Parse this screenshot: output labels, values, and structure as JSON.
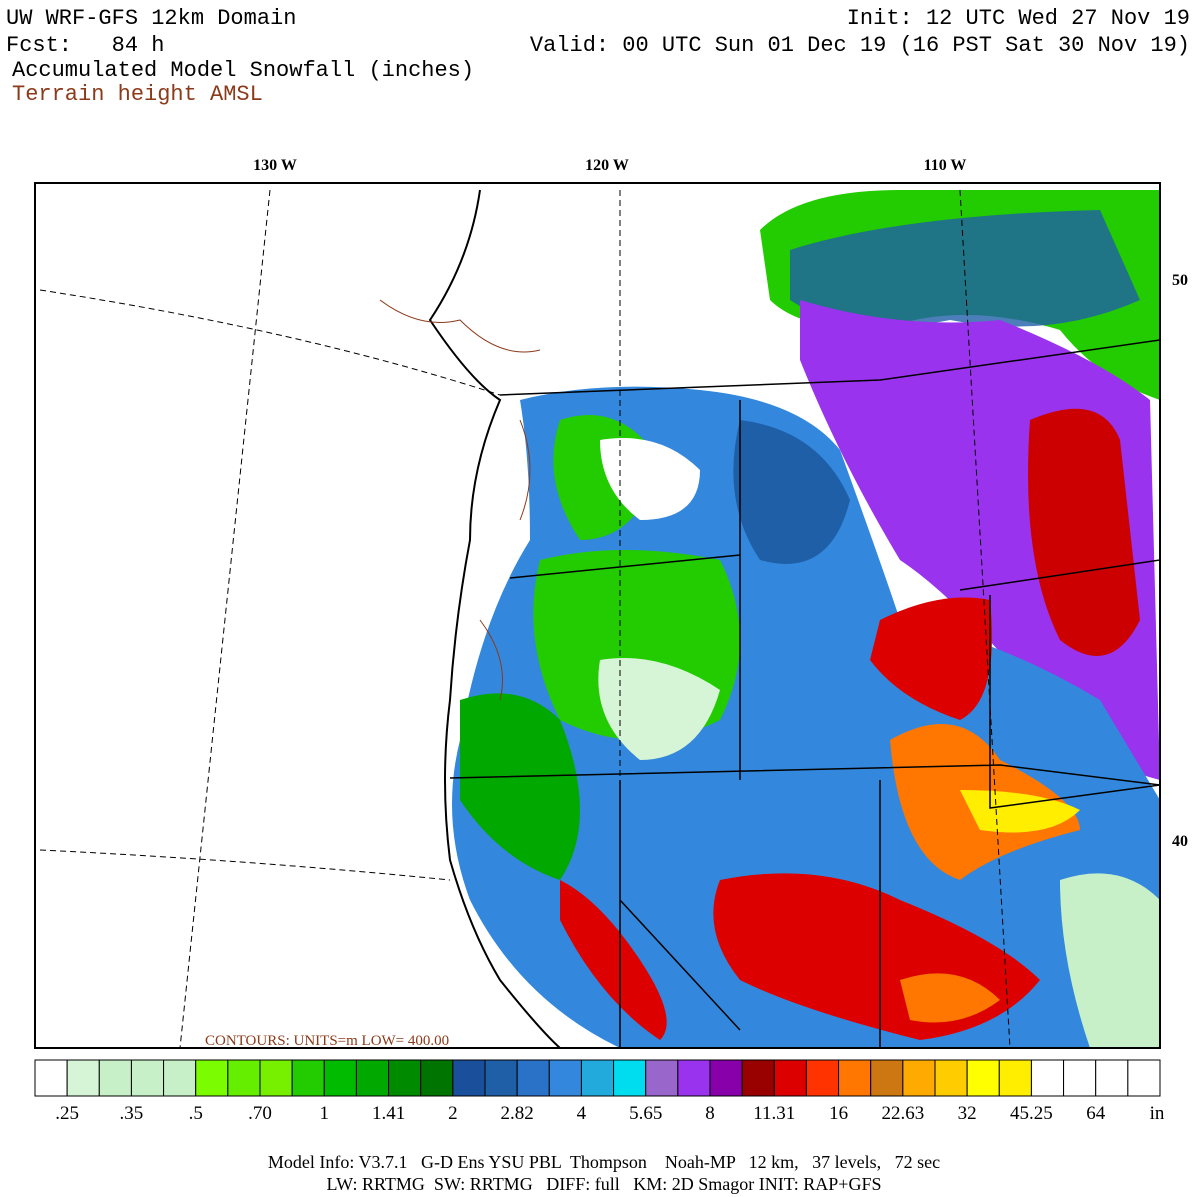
{
  "header": {
    "title": "UW WRF-GFS 12km Domain",
    "init": "Init: 12 UTC Wed 27 Nov 19",
    "fcst": "Fcst:   84 h",
    "valid": "Valid: 00 UTC Sun 01 Dec 19 (16 PST Sat 30 Nov 19)",
    "field": "Accumulated Model Snowfall (inches)",
    "contour_field": "Terrain height AMSL"
  },
  "map": {
    "lon_labels": [
      "130 W",
      "120 W",
      "110 W"
    ],
    "lat_labels": [
      "50",
      "40"
    ],
    "contour_note": "CONTOURS: UNITS=m  LOW=  400.00"
  },
  "colorbar": {
    "colors": [
      "#ffffff",
      "#d6f5d6",
      "#c8f0c8",
      "#c8f0c8",
      "#c8f0c8",
      "#7cfc00",
      "#66ee00",
      "#77f000",
      "#22cc00",
      "#00bb00",
      "#00a800",
      "#008a00",
      "#007400",
      "#1a4f9c",
      "#1f5fa8",
      "#2a72c8",
      "#3388dd",
      "#22aadd",
      "#00ddee",
      "#9966cc",
      "#9933ee",
      "#8800aa",
      "#990000",
      "#dd0000",
      "#ff3300",
      "#ff7700",
      "#cc7711",
      "#ffaa00",
      "#ffcc00",
      "#ffff00",
      "#ffee00",
      "#ffffff",
      "#ffffff",
      "#ffffff",
      "#ffffff"
    ],
    "labels": [
      ".25",
      ".35",
      ".5",
      ".70",
      "1",
      "1.41",
      "2",
      "2.82",
      "4",
      "5.65",
      "8",
      "11.31",
      "16",
      "22.63",
      "32",
      "45.25",
      "64"
    ],
    "unit": "in"
  },
  "footer": {
    "line1": "Model Info: V3.7.1   G-D Ens YSU PBL  Thompson    Noah-MP   12 km,   37 levels,   72 sec",
    "line2": "LW: RRTMG  SW: RRTMG   DIFF: full   KM: 2D Smagor INIT: RAP+GFS"
  }
}
